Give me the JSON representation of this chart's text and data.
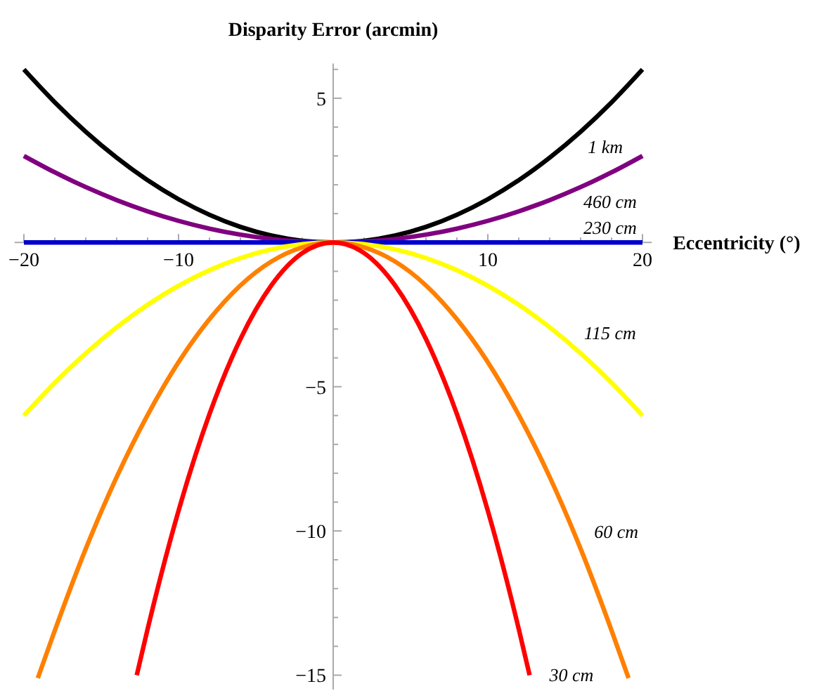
{
  "chart_data": {
    "type": "line",
    "xlabel": "Eccentricity (°)",
    "ylabel": "Disparity Error (arcmin)",
    "xlim": [
      -20.6,
      20.6
    ],
    "ylim": [
      -15.5,
      6.2
    ],
    "xticks": [
      -20,
      {
        "value": -18,
        "label": null
      },
      {
        "value": -16,
        "label": null
      },
      {
        "value": -14,
        "label": null
      },
      {
        "value": -12,
        "label": null
      },
      -10,
      {
        "value": -8,
        "label": null
      },
      {
        "value": -6,
        "label": null
      },
      {
        "value": -4,
        "label": null
      },
      {
        "value": -2,
        "label": null
      },
      {
        "value": 2,
        "label": null
      },
      {
        "value": 4,
        "label": null
      },
      {
        "value": 6,
        "label": null
      },
      {
        "value": 8,
        "label": null
      },
      10,
      {
        "value": 12,
        "label": null
      },
      {
        "value": 14,
        "label": null
      },
      {
        "value": 16,
        "label": null
      },
      {
        "value": 18,
        "label": null
      },
      20
    ],
    "yticks": [
      {
        "value": -15,
        "label": "−15"
      },
      {
        "value": -14,
        "label": null
      },
      {
        "value": -13,
        "label": null
      },
      {
        "value": -12,
        "label": null
      },
      {
        "value": -11,
        "label": null
      },
      {
        "value": -10,
        "label": "−10"
      },
      {
        "value": -9,
        "label": null
      },
      {
        "value": -8,
        "label": null
      },
      {
        "value": -7,
        "label": null
      },
      {
        "value": -6,
        "label": null
      },
      {
        "value": -5,
        "label": "−5"
      },
      {
        "value": -4,
        "label": null
      },
      {
        "value": -3,
        "label": null
      },
      {
        "value": -2,
        "label": null
      },
      {
        "value": -1,
        "label": null
      },
      {
        "value": 1,
        "label": null
      },
      {
        "value": 2,
        "label": null
      },
      {
        "value": 3,
        "label": null
      },
      {
        "value": 4,
        "label": null
      },
      5,
      {
        "value": 6,
        "label": null
      }
    ],
    "grid": false,
    "marker": "none",
    "line_style": "solid",
    "series": [
      {
        "name": "1 km",
        "color": "#000000",
        "x": [
          -20,
          -18,
          -16,
          -14,
          -12,
          -10,
          -8,
          -6,
          -4,
          -2,
          0,
          2,
          4,
          6,
          8,
          10,
          12,
          14,
          16,
          18,
          20
        ],
        "values": [
          6,
          4.86,
          3.84,
          2.94,
          2.16,
          1.5,
          0.96,
          0.54,
          0.24,
          0.06,
          0,
          0.06,
          0.24,
          0.54,
          0.96,
          1.5,
          2.16,
          2.94,
          3.84,
          4.86,
          6
        ]
      },
      {
        "name": "460 cm",
        "color": "#800080",
        "x": [
          -20,
          -18,
          -16,
          -14,
          -12,
          -10,
          -8,
          -6,
          -4,
          -2,
          0,
          2,
          4,
          6,
          8,
          10,
          12,
          14,
          16,
          18,
          20
        ],
        "values": [
          3,
          2.43,
          1.92,
          1.47,
          1.08,
          0.75,
          0.48,
          0.27,
          0.12,
          0.03,
          0,
          0.03,
          0.12,
          0.27,
          0.48,
          0.75,
          1.08,
          1.47,
          1.92,
          2.43,
          3
        ]
      },
      {
        "name": "230 cm",
        "color": "#0000cc",
        "x": [
          -20,
          0,
          20
        ],
        "values": [
          0,
          0,
          0
        ]
      },
      {
        "name": "115 cm",
        "color": "#ffff00",
        "x": [
          -20,
          -18,
          -16,
          -14,
          -12,
          -10,
          -8,
          -6,
          -4,
          -2,
          0,
          2,
          4,
          6,
          8,
          10,
          12,
          14,
          16,
          18,
          20
        ],
        "values": [
          -6,
          -4.86,
          -3.84,
          -2.94,
          -2.16,
          -1.5,
          -0.96,
          -0.54,
          -0.24,
          -0.06,
          0,
          -0.06,
          -0.24,
          -0.54,
          -0.96,
          -1.5,
          -2.16,
          -2.94,
          -3.84,
          -4.86,
          -6
        ]
      },
      {
        "name": "60 cm",
        "color": "#ff8000",
        "x": [
          -19.1,
          -18,
          -16,
          -14,
          -12,
          -10,
          -8,
          -6,
          -4,
          -2,
          0,
          2,
          4,
          6,
          8,
          10,
          12,
          14,
          16,
          18,
          19.1
        ],
        "values": [
          -15.1,
          -13.45,
          -10.62,
          -8.13,
          -5.98,
          -4.15,
          -2.66,
          -1.49,
          -0.66,
          -0.17,
          0,
          -0.17,
          -0.66,
          -1.49,
          -2.66,
          -4.15,
          -5.98,
          -8.13,
          -10.62,
          -13.45,
          -15.1
        ]
      },
      {
        "name": "30 cm",
        "color": "#ff0000",
        "x": [
          -12.7,
          -12,
          -10,
          -8,
          -6,
          -4,
          -2,
          0,
          2,
          4,
          6,
          8,
          10,
          12,
          12.7
        ],
        "values": [
          -15,
          -13.4,
          -9.3,
          -5.95,
          -3.35,
          -1.49,
          -0.37,
          0,
          -0.37,
          -1.49,
          -3.35,
          -5.95,
          -9.3,
          -13.4,
          -15
        ]
      }
    ]
  }
}
